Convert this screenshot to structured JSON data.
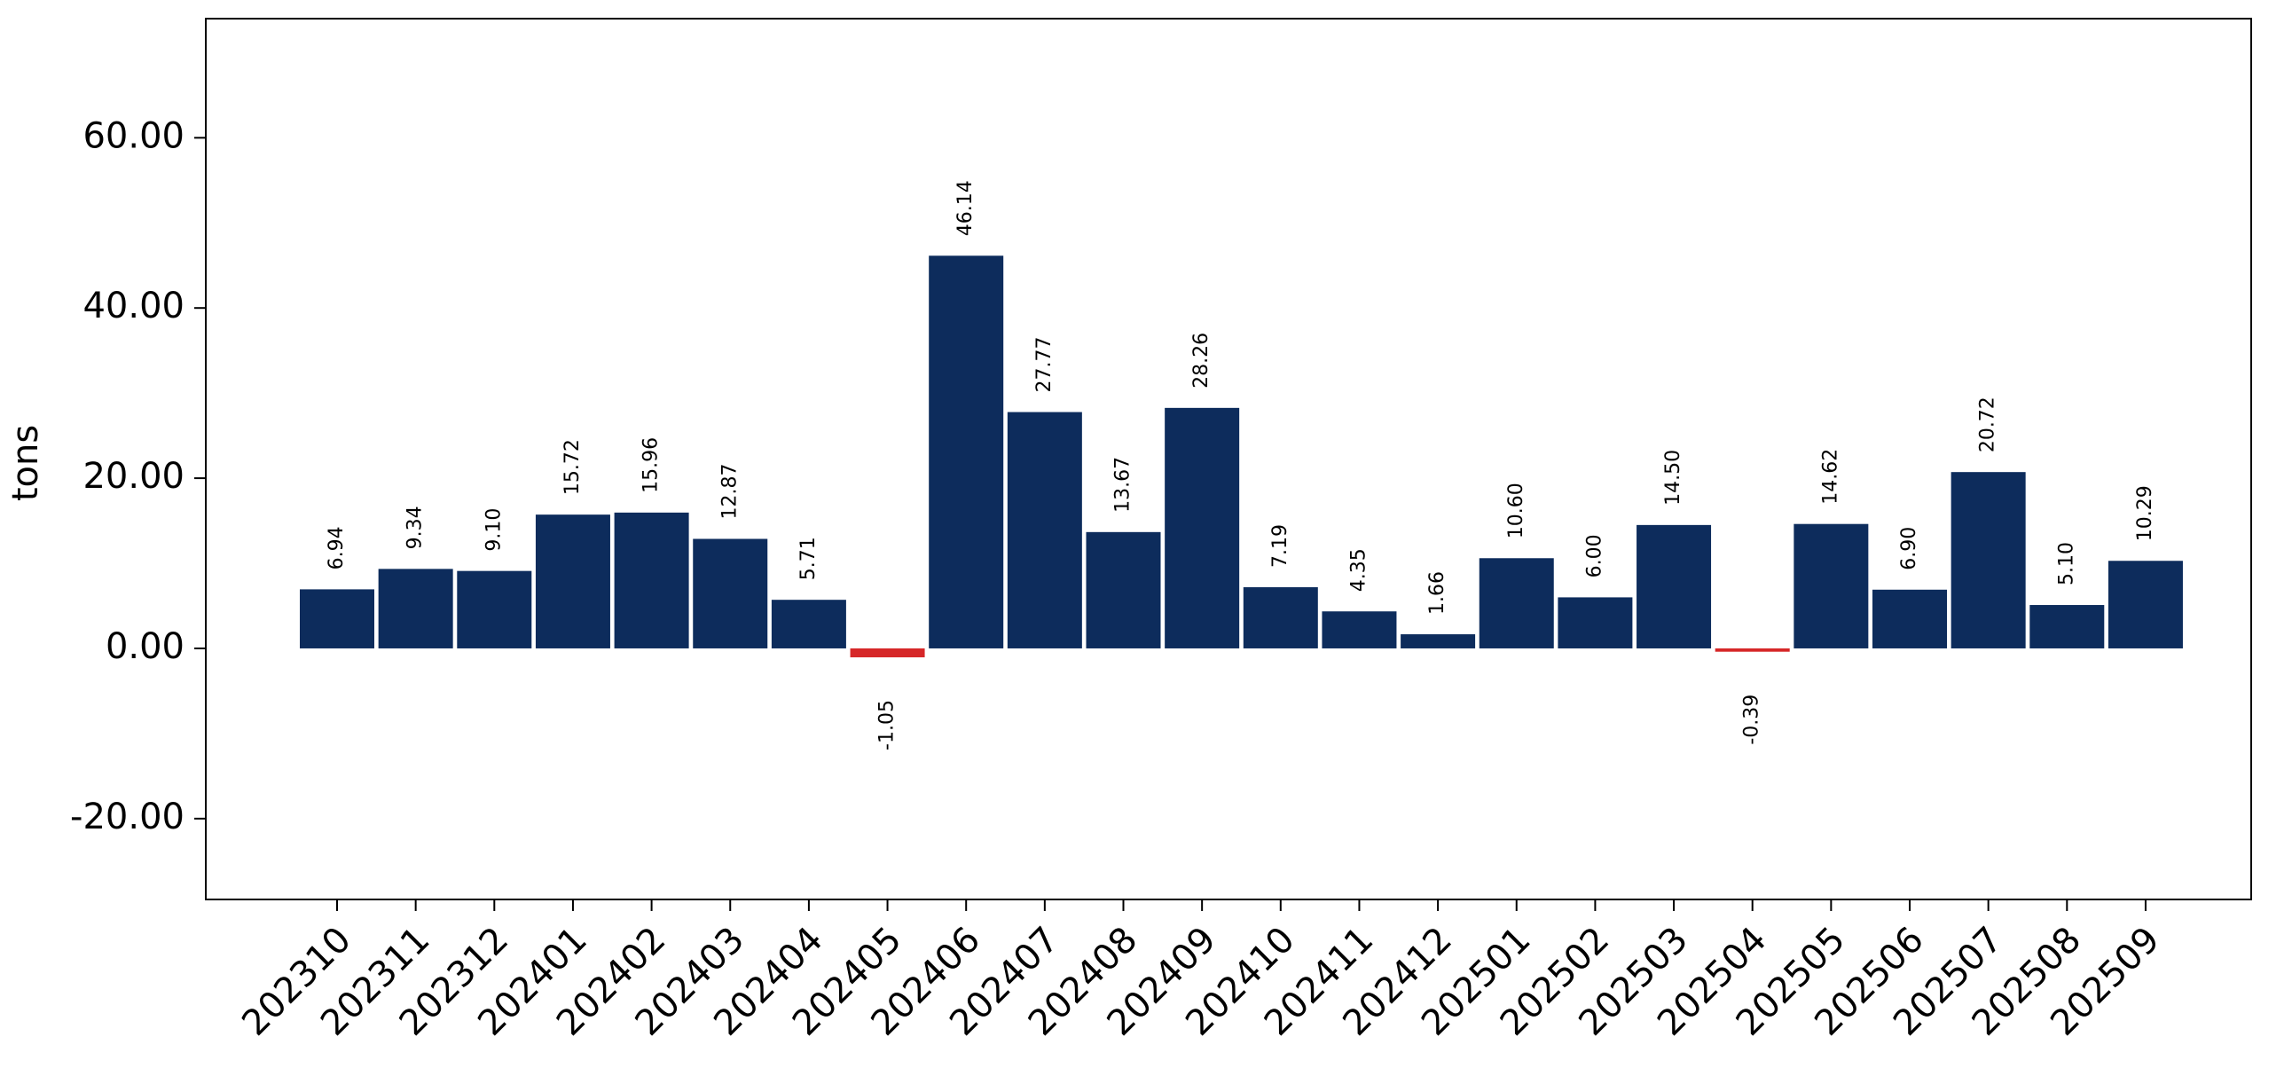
{
  "chart_data": {
    "type": "bar",
    "title": "",
    "xlabel": "",
    "ylabel": "tons",
    "ylim": [
      -29.5,
      74
    ],
    "yticks": [
      -20,
      0,
      20,
      40,
      60
    ],
    "ytick_labels": [
      "-20.00",
      "0.00",
      "20.00",
      "40.00",
      "60.00"
    ],
    "grid": false,
    "legend": "none",
    "colors": {
      "positive": "#0d2c5c",
      "negative": "#d62728",
      "axis": "#000000",
      "label": "#000000"
    },
    "categories": [
      "202310",
      "202311",
      "202312",
      "202401",
      "202402",
      "202403",
      "202404",
      "202405",
      "202406",
      "202407",
      "202408",
      "202409",
      "202410",
      "202411",
      "202412",
      "202501",
      "202502",
      "202503",
      "202504",
      "202505",
      "202506",
      "202507",
      "202508",
      "202509"
    ],
    "values": [
      6.94,
      9.34,
      9.1,
      15.72,
      15.96,
      12.87,
      5.71,
      -1.05,
      46.14,
      27.77,
      13.67,
      28.26,
      7.19,
      4.35,
      1.66,
      10.6,
      6.0,
      14.5,
      -0.39,
      14.62,
      6.9,
      20.72,
      5.1,
      10.29
    ],
    "value_labels": [
      "6.94",
      "9.34",
      "9.10",
      "15.72",
      "15.96",
      "12.87",
      "5.71",
      "-1.05",
      "46.14",
      "27.77",
      "13.67",
      "28.26",
      "7.19",
      "4.35",
      "1.66",
      "10.60",
      "6.00",
      "14.50",
      "-0.39",
      "14.62",
      "6.90",
      "20.72",
      "5.10",
      "10.29"
    ]
  }
}
